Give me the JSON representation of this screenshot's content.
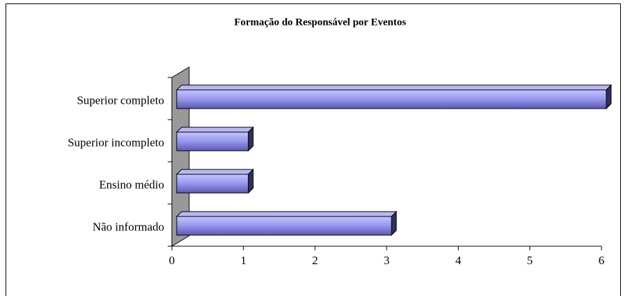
{
  "chart_data": {
    "type": "bar",
    "orientation": "horizontal",
    "title": "Formação do Responsável por Eventos",
    "categories": [
      "Superior completo",
      "Superior incompleto",
      "Ensino médio",
      "Não informado"
    ],
    "values": [
      6,
      1,
      1,
      3
    ],
    "color": "#8a8ae6",
    "xlim": [
      0,
      6
    ],
    "xticks": [
      0,
      1,
      2,
      3,
      4,
      5,
      6
    ]
  }
}
